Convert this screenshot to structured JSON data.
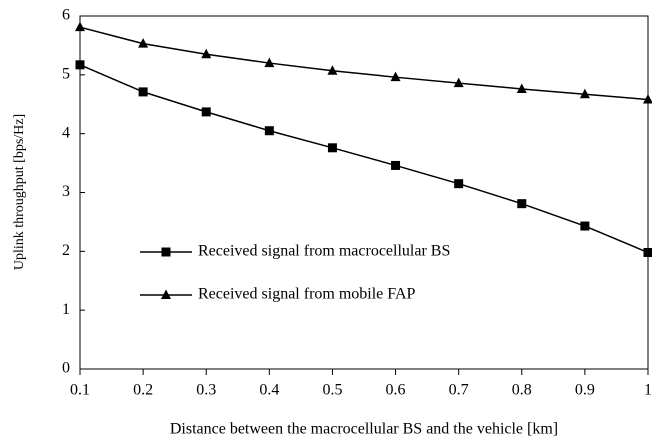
{
  "chart_data": {
    "type": "line",
    "x_label": "Distance between the macrocellular BS and the vehicle [km]",
    "y_label": "Uplink throughput [bps/Hz]",
    "x": [
      0.1,
      0.2,
      0.3,
      0.4,
      0.5,
      0.6,
      0.7,
      0.8,
      0.9,
      1
    ],
    "series": [
      {
        "name": "Received signal from macrocellular BS",
        "color": "#000000",
        "marker": "square",
        "values": [
          5.17,
          4.71,
          4.37,
          4.05,
          3.76,
          3.46,
          3.15,
          2.81,
          2.43,
          1.98
        ]
      },
      {
        "name": "Received signal from mobile FAP",
        "color": "#000000",
        "marker": "triangle",
        "values": [
          5.81,
          5.53,
          5.35,
          5.2,
          5.07,
          4.96,
          4.86,
          4.76,
          4.67,
          4.58
        ]
      }
    ],
    "xlim": [
      0.1,
      1
    ],
    "xticks": [
      0.1,
      0.2,
      0.3,
      0.4,
      0.5,
      0.6,
      0.7,
      0.8,
      0.9,
      1
    ],
    "ylim": [
      0,
      6
    ],
    "yticks": [
      0,
      1,
      2,
      3,
      4,
      5,
      6
    ],
    "grid": false,
    "legend": "center-left"
  }
}
